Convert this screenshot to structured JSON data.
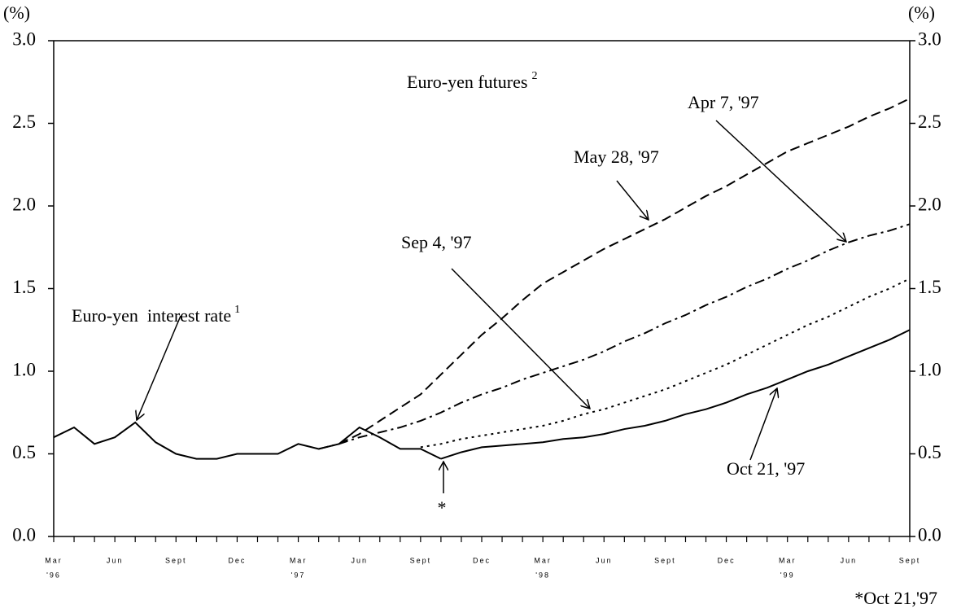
{
  "chart_data": {
    "type": "line",
    "y_unit": "(%)",
    "futures_label": "Euro-yen futures",
    "futures_note": "2",
    "marker_text": "*",
    "footnote": "*Oct 21,'97",
    "categories": [
      "Mar",
      null,
      null,
      "Jun",
      null,
      null,
      "Sept",
      null,
      null,
      "Dec",
      null,
      null,
      "Mar",
      null,
      null,
      "Jun",
      null,
      null,
      "Sept",
      null,
      null,
      "Dec",
      null,
      null,
      "Mar",
      null,
      null,
      "Jun",
      null,
      null,
      "Sept",
      null,
      null,
      "Dec",
      null,
      null,
      "Mar",
      null,
      null,
      "Jun",
      null,
      null,
      "Sept"
    ],
    "x_years": [
      "'96",
      null,
      null,
      null,
      null,
      null,
      null,
      null,
      null,
      null,
      null,
      null,
      "'97",
      null,
      null,
      null,
      null,
      null,
      null,
      null,
      null,
      null,
      null,
      null,
      "'98",
      null,
      null,
      null,
      null,
      null,
      null,
      null,
      null,
      null,
      null,
      null,
      "'99",
      null,
      null,
      null,
      null,
      null,
      null
    ],
    "ylim": [
      0,
      3
    ],
    "yticks": [
      {
        "value": 0,
        "label": "0.0"
      },
      {
        "value": 0.5,
        "label": "0.5"
      },
      {
        "value": 1,
        "label": "1.0"
      },
      {
        "value": 1.5,
        "label": "1.5"
      },
      {
        "value": 2,
        "label": "2.0"
      },
      {
        "value": 2.5,
        "label": "2.5"
      },
      {
        "value": 3,
        "label": "3.0"
      }
    ],
    "y2lim": [
      0,
      3
    ],
    "y2ticks": [
      {
        "value": 0,
        "label": "0.0"
      },
      {
        "value": 0.5,
        "label": "0.5"
      },
      {
        "value": 1,
        "label": "1.0"
      },
      {
        "value": 1.5,
        "label": "1.5"
      },
      {
        "value": 2,
        "label": "2.0"
      },
      {
        "value": 2.5,
        "label": "2.5"
      },
      {
        "value": 3,
        "label": "3.0"
      }
    ],
    "grid": false,
    "series": [
      {
        "name": "Euro-yen  interest rate",
        "note": "1",
        "color": "#000000",
        "style": "solid",
        "values": [
          0.6,
          0.66,
          0.56,
          0.6,
          0.69,
          0.57,
          0.5,
          0.47,
          0.47,
          0.5,
          0.5,
          0.5,
          0.56,
          0.53,
          0.56,
          0.66,
          0.6,
          0.53,
          0.53,
          0.47,
          null,
          null,
          null,
          null,
          null,
          null,
          null,
          null,
          null,
          null,
          null,
          null,
          null,
          null,
          null,
          null,
          null,
          null,
          null,
          null,
          null,
          null,
          null
        ]
      },
      {
        "name": "Sep 4, '97",
        "color": "#000000",
        "style": "dotted",
        "values": [
          null,
          null,
          null,
          null,
          null,
          null,
          null,
          null,
          null,
          null,
          null,
          null,
          null,
          null,
          null,
          null,
          null,
          null,
          0.54,
          0.56,
          0.59,
          0.61,
          0.63,
          0.65,
          0.67,
          0.7,
          0.74,
          0.77,
          0.81,
          0.85,
          0.89,
          0.94,
          0.99,
          1.04,
          1.1,
          1.16,
          1.22,
          1.28,
          1.33,
          1.39,
          1.45,
          1.5,
          1.56
        ]
      },
      {
        "name": "May 28, '97",
        "color": "#000000",
        "style": "dashed",
        "values": [
          null,
          null,
          null,
          null,
          null,
          null,
          null,
          null,
          null,
          null,
          null,
          null,
          null,
          null,
          0.56,
          0.62,
          0.7,
          0.78,
          0.86,
          0.98,
          1.1,
          1.22,
          1.32,
          1.43,
          1.53,
          1.6,
          1.67,
          1.74,
          1.8,
          1.86,
          1.92,
          1.99,
          2.06,
          2.12,
          2.19,
          2.26,
          2.33,
          2.38,
          2.43,
          2.48,
          2.54,
          2.59,
          2.65
        ]
      },
      {
        "name": "Apr 7, '97",
        "color": "#000000",
        "style": "dashdot",
        "values": [
          null,
          null,
          null,
          null,
          null,
          null,
          null,
          null,
          null,
          null,
          null,
          null,
          null,
          0.53,
          0.56,
          0.6,
          0.63,
          0.66,
          0.7,
          0.75,
          0.81,
          0.86,
          0.9,
          0.95,
          0.99,
          1.03,
          1.07,
          1.12,
          1.18,
          1.23,
          1.29,
          1.34,
          1.4,
          1.45,
          1.51,
          1.56,
          1.62,
          1.67,
          1.73,
          1.78,
          1.82,
          1.85,
          1.89
        ]
      },
      {
        "name": "Oct 21, '97",
        "color": "#000000",
        "style": "solid",
        "values": [
          null,
          null,
          null,
          null,
          null,
          null,
          null,
          null,
          null,
          null,
          null,
          null,
          null,
          null,
          null,
          null,
          null,
          null,
          null,
          0.47,
          0.51,
          0.54,
          0.55,
          0.56,
          0.57,
          0.59,
          0.6,
          0.62,
          0.65,
          0.67,
          0.7,
          0.74,
          0.77,
          0.81,
          0.86,
          0.9,
          0.95,
          1.0,
          1.04,
          1.09,
          1.14,
          1.19,
          1.25
        ]
      }
    ]
  }
}
